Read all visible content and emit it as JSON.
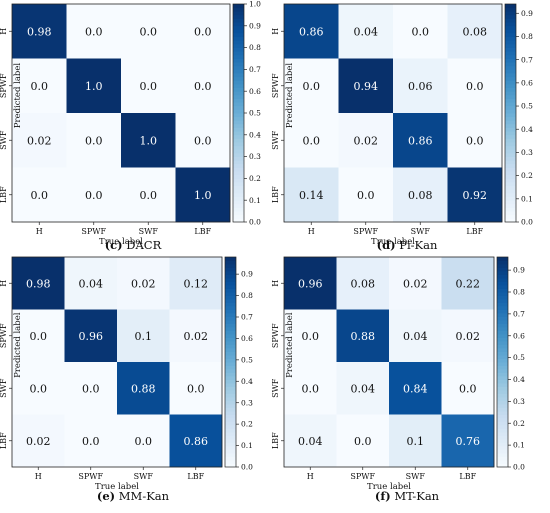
{
  "chart_data": [
    {
      "type": "heatmap",
      "caption_letter": "(c)",
      "caption_text": "DACR",
      "xlabel": "True label",
      "ylabel": "Predicted label",
      "x_categories": [
        "H",
        "SPWF",
        "SWF",
        "LBF"
      ],
      "y_categories": [
        "H",
        "SPWF",
        "SWF",
        "LBF"
      ],
      "values": [
        [
          0.98,
          0.0,
          0.0,
          0.0
        ],
        [
          0.0,
          1.0,
          0.0,
          0.0
        ],
        [
          0.02,
          0.0,
          1.0,
          0.0
        ],
        [
          0.0,
          0.0,
          0.0,
          1.0
        ]
      ],
      "value_labels": [
        [
          "0.98",
          "0.0",
          "0.0",
          "0.0"
        ],
        [
          "0.0",
          "1.0",
          "0.0",
          "0.0"
        ],
        [
          "0.02",
          "0.0",
          "1.0",
          "0.0"
        ],
        [
          "0.0",
          "0.0",
          "0.0",
          "1.0"
        ]
      ],
      "colorbar_range": [
        0,
        1.0
      ],
      "colorbar_ticks": [
        "0.0",
        "0.1",
        "0.2",
        "0.3",
        "0.4",
        "0.5",
        "0.6",
        "0.7",
        "0.8",
        "0.9",
        "1.0"
      ]
    },
    {
      "type": "heatmap",
      "caption_letter": "(d)",
      "caption_text": "Pi-Kan",
      "xlabel": "True label",
      "ylabel": "Predicted label",
      "x_categories": [
        "H",
        "SPWF",
        "SWF",
        "LBF"
      ],
      "y_categories": [
        "H",
        "SPWF",
        "SWF",
        "LBF"
      ],
      "values": [
        [
          0.86,
          0.04,
          0.0,
          0.08
        ],
        [
          0.0,
          0.94,
          0.06,
          0.0
        ],
        [
          0.0,
          0.02,
          0.86,
          0.0
        ],
        [
          0.14,
          0.0,
          0.08,
          0.92
        ]
      ],
      "value_labels": [
        [
          "0.86",
          "0.04",
          "0.0",
          "0.08"
        ],
        [
          "0.0",
          "0.94",
          "0.06",
          "0.0"
        ],
        [
          "0.0",
          "0.02",
          "0.86",
          "0.0"
        ],
        [
          "0.14",
          "0.0",
          "0.08",
          "0.92"
        ]
      ],
      "colorbar_range": [
        0,
        0.94
      ],
      "colorbar_ticks": [
        "0.0",
        "0.1",
        "0.2",
        "0.3",
        "0.4",
        "0.5",
        "0.6",
        "0.7",
        "0.8",
        "0.9"
      ]
    },
    {
      "type": "heatmap",
      "caption_letter": "(e)",
      "caption_text": "MM-Kan",
      "xlabel": "True label",
      "ylabel": "Predicted label",
      "x_categories": [
        "H",
        "SPWF",
        "SWF",
        "LBF"
      ],
      "y_categories": [
        "H",
        "SPWF",
        "SWF",
        "LBF"
      ],
      "values": [
        [
          0.98,
          0.04,
          0.02,
          0.12
        ],
        [
          0.0,
          0.96,
          0.1,
          0.02
        ],
        [
          0.0,
          0.0,
          0.88,
          0.0
        ],
        [
          0.02,
          0.0,
          0.0,
          0.86
        ]
      ],
      "value_labels": [
        [
          "0.98",
          "0.04",
          "0.02",
          "0.12"
        ],
        [
          "0.0",
          "0.96",
          "0.1",
          "0.02"
        ],
        [
          "0.0",
          "0.0",
          "0.88",
          "0.0"
        ],
        [
          "0.02",
          "0.0",
          "0.0",
          "0.86"
        ]
      ],
      "colorbar_range": [
        0,
        0.98
      ],
      "colorbar_ticks": [
        "0.0",
        "0.1",
        "0.2",
        "0.3",
        "0.4",
        "0.5",
        "0.6",
        "0.7",
        "0.8",
        "0.9"
      ]
    },
    {
      "type": "heatmap",
      "caption_letter": "(f)",
      "caption_text": "MT-Kan",
      "xlabel": "True label",
      "ylabel": "Predicted label",
      "x_categories": [
        "H",
        "SPWF",
        "SWF",
        "LBF"
      ],
      "y_categories": [
        "H",
        "SPWF",
        "SWF",
        "LBF"
      ],
      "values": [
        [
          0.96,
          0.08,
          0.02,
          0.22
        ],
        [
          0.0,
          0.88,
          0.04,
          0.02
        ],
        [
          0.0,
          0.04,
          0.84,
          0.0
        ],
        [
          0.04,
          0.0,
          0.1,
          0.76
        ]
      ],
      "value_labels": [
        [
          "0.96",
          "0.08",
          "0.02",
          "0.22"
        ],
        [
          "0.0",
          "0.88",
          "0.04",
          "0.02"
        ],
        [
          "0.0",
          "0.04",
          "0.84",
          "0.0"
        ],
        [
          "0.04",
          "0.0",
          "0.1",
          "0.76"
        ]
      ],
      "colorbar_range": [
        0,
        0.96
      ],
      "colorbar_ticks": [
        "0.0",
        "0.1",
        "0.2",
        "0.3",
        "0.4",
        "0.5",
        "0.6",
        "0.7",
        "0.8",
        "0.9"
      ]
    }
  ],
  "colormap": {
    "low": "#f7fbff",
    "high": "#08306b",
    "name": "Blues"
  }
}
